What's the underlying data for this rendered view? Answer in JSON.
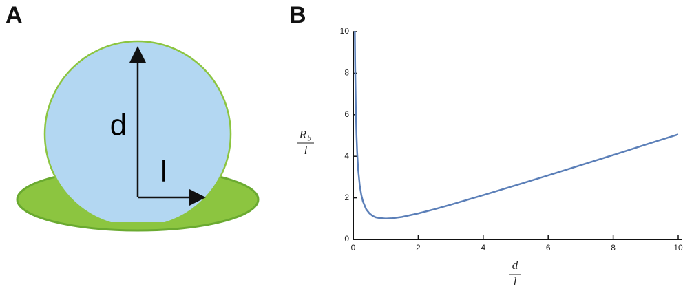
{
  "chart_data": {
    "type": "line",
    "panel_labels": [
      "A",
      "B"
    ],
    "diagram_labels": [
      "d",
      "l"
    ],
    "ylabel": {
      "numerator": "R",
      "subscript": "b",
      "denominator": "l"
    },
    "xlabel": {
      "numerator": "d",
      "denominator": "l"
    },
    "x": [
      0.05,
      0.06,
      0.08,
      0.1,
      0.12,
      0.15,
      0.2,
      0.25,
      0.3,
      0.4,
      0.5,
      0.6,
      0.7,
      0.8,
      1,
      1.2,
      1.5,
      2,
      2.5,
      3,
      4,
      5,
      6,
      7,
      8,
      9,
      10
    ],
    "series": [
      {
        "color": "#5b7fb8",
        "values": [
          10.03,
          8.36,
          6.29,
          5.05,
          4.23,
          3.41,
          2.6,
          2.13,
          1.82,
          1.45,
          1.25,
          1.13,
          1.06,
          1.03,
          1,
          1.02,
          1.08,
          1.25,
          1.45,
          1.67,
          2.13,
          2.6,
          3.08,
          3.57,
          4.06,
          4.56,
          5.05
        ]
      }
    ],
    "xlim": [
      0,
      10
    ],
    "ylim": [
      0,
      10
    ],
    "xticks": [
      0,
      2,
      4,
      6,
      8,
      10
    ],
    "yticks": [
      0,
      2,
      4,
      6,
      8,
      10
    ]
  }
}
